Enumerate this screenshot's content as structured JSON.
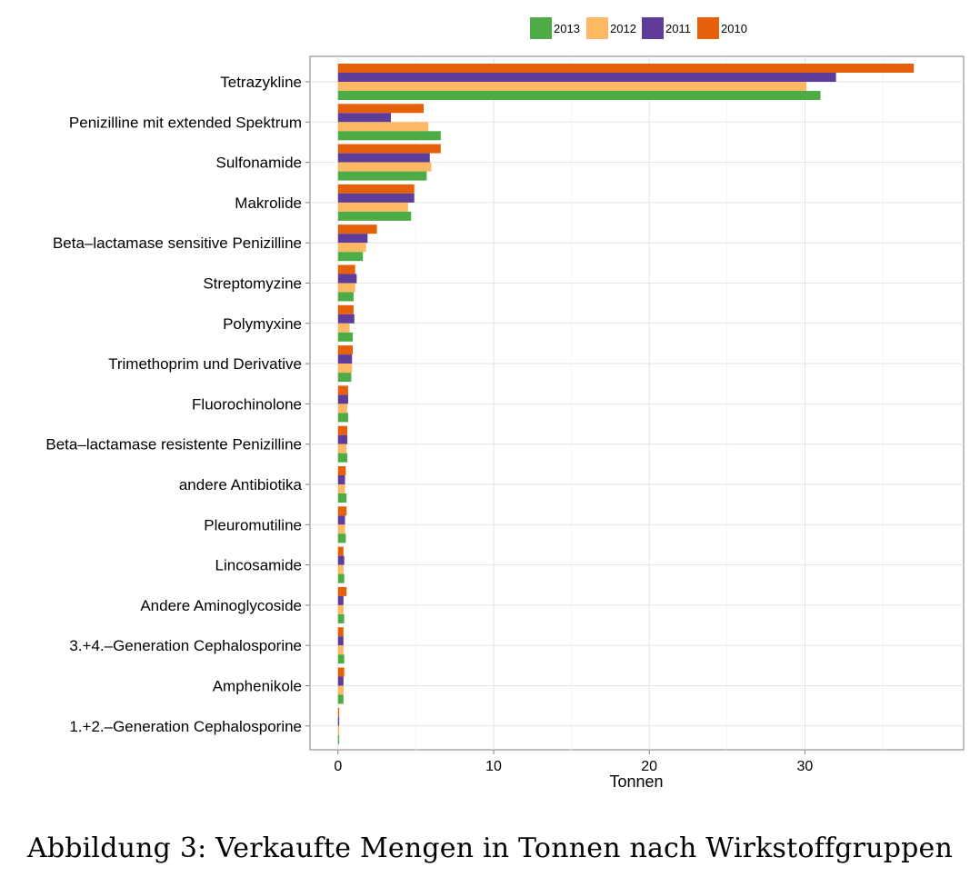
{
  "chart_data": {
    "type": "bar",
    "orientation": "horizontal",
    "categories": [
      "Tetrazykline",
      "Penizilline mit extended Spektrum",
      "Sulfonamide",
      "Makrolide",
      "Beta–lactamase sensitive Penizilline",
      "Streptomyzine",
      "Polymyxine",
      "Trimethoprim und Derivative",
      "Fluorochinolone",
      "Beta–lactamase resistente Penizilline",
      "andere Antibiotika",
      "Pleuromutiline",
      "Lincosamide",
      "Andere Aminoglycoside",
      "3.+4.–Generation Cephalosporine",
      "Amphenikole",
      "1.+2.–Generation Cephalosporine"
    ],
    "series": [
      {
        "name": "2010",
        "color": "#e6600a",
        "values": [
          37.0,
          5.5,
          6.6,
          4.9,
          2.5,
          1.1,
          1.0,
          0.95,
          0.65,
          0.6,
          0.5,
          0.55,
          0.35,
          0.55,
          0.35,
          0.4,
          0.08
        ]
      },
      {
        "name": "2011",
        "color": "#5e3c99",
        "values": [
          32.0,
          3.4,
          5.9,
          4.9,
          1.9,
          1.2,
          1.05,
          0.9,
          0.65,
          0.6,
          0.45,
          0.45,
          0.4,
          0.35,
          0.35,
          0.35,
          0.08
        ]
      },
      {
        "name": "2012",
        "color": "#fdb863",
        "values": [
          30.1,
          5.8,
          6.0,
          4.5,
          1.8,
          1.1,
          0.75,
          0.9,
          0.6,
          0.55,
          0.45,
          0.45,
          0.35,
          0.35,
          0.35,
          0.35,
          0.08
        ]
      },
      {
        "name": "2013",
        "color": "#4dac45",
        "values": [
          31.0,
          6.6,
          5.7,
          4.7,
          1.6,
          1.0,
          0.95,
          0.85,
          0.65,
          0.6,
          0.55,
          0.5,
          0.4,
          0.4,
          0.4,
          0.35,
          0.08
        ]
      }
    ],
    "legend_order": [
      "2013",
      "2012",
      "2011",
      "2010"
    ],
    "legend_position": "top",
    "xlim": [
      -1.8,
      40.2
    ],
    "xticks": [
      0,
      10,
      20,
      30
    ],
    "xlabel": "Tonnen",
    "ylabel": "",
    "grid": true
  },
  "caption": "Abbildung 3: Verkaufte Mengen in Tonnen nach Wirkstoffgruppen"
}
